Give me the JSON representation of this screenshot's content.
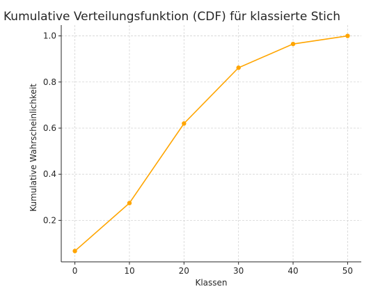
{
  "chart_data": {
    "type": "line",
    "title": "Kumulative Verteilungsfunktion (CDF) für klassierte Stich",
    "xlabel": "Klassen",
    "ylabel": "Kumulative Wahrscheinlichkeit",
    "x": [
      0,
      10,
      20,
      30,
      40,
      50
    ],
    "series": [
      {
        "values": [
          0.067,
          0.275,
          0.62,
          0.862,
          0.965,
          1.0
        ],
        "color": "#FFA500"
      }
    ],
    "xticks": [
      0,
      10,
      20,
      30,
      40,
      50
    ],
    "xtick_labels": [
      "0",
      "10",
      "20",
      "30",
      "40",
      "50"
    ],
    "yticks": [
      0.2,
      0.4,
      0.6,
      0.8,
      1.0
    ],
    "ytick_labels": [
      "0.2",
      "0.4",
      "0.6",
      "0.8",
      "1.0"
    ],
    "xlim": [
      -2.5,
      52.5
    ],
    "ylim": [
      0.02,
      1.047
    ],
    "grid": true,
    "markers": true
  }
}
